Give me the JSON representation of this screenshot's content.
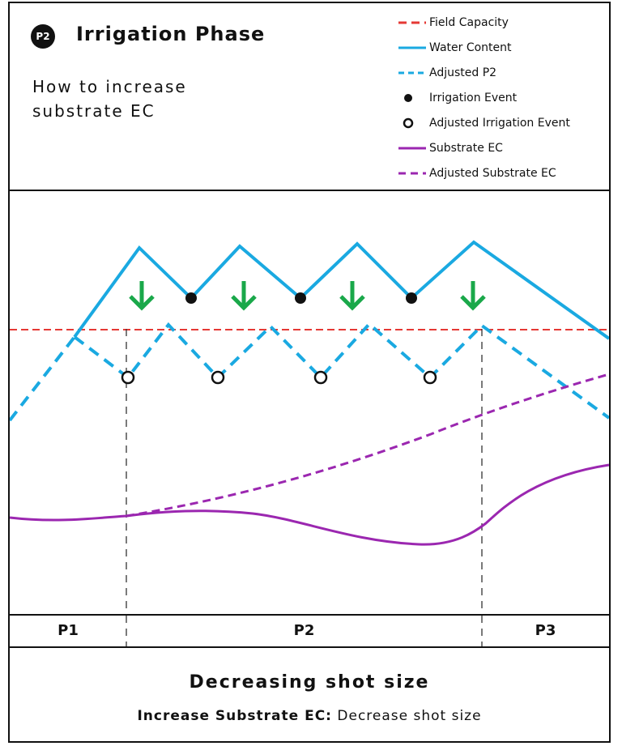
{
  "badge": "P2",
  "title": "Irrigation Phase",
  "subtitle": "How to increase substrate EC",
  "legend": [
    {
      "label": "Field Capacity",
      "style": "dashed",
      "color": "#e53935"
    },
    {
      "label": "Water Content",
      "style": "solid",
      "color": "#1aa9e1"
    },
    {
      "label": "Adjusted P2",
      "style": "dashed",
      "color": "#1aa9e1"
    },
    {
      "label": "Irrigation Event",
      "style": "filled-dot",
      "color": "#111111"
    },
    {
      "label": "Adjusted Irrigation Event",
      "style": "open-dot",
      "color": "#111111"
    },
    {
      "label": "Substrate EC",
      "style": "solid",
      "color": "#9b27b0"
    },
    {
      "label": "Adjusted Substrate EC",
      "style": "dashed",
      "color": "#9b27b0"
    }
  ],
  "phases": [
    "P1",
    "P2",
    "P3"
  ],
  "footer": {
    "title": "Decreasing shot size",
    "desc_bold": "Increase Substrate EC:",
    "desc_rest": "Decrease shot size"
  },
  "colors": {
    "field_capacity": "#e53935",
    "water": "#1aa9e1",
    "ec": "#9b27b0",
    "arrow": "#1aa84a",
    "ink": "#111111"
  },
  "icons": {
    "arrow": "down-arrow-icon",
    "badge": "p2-badge-icon"
  }
}
